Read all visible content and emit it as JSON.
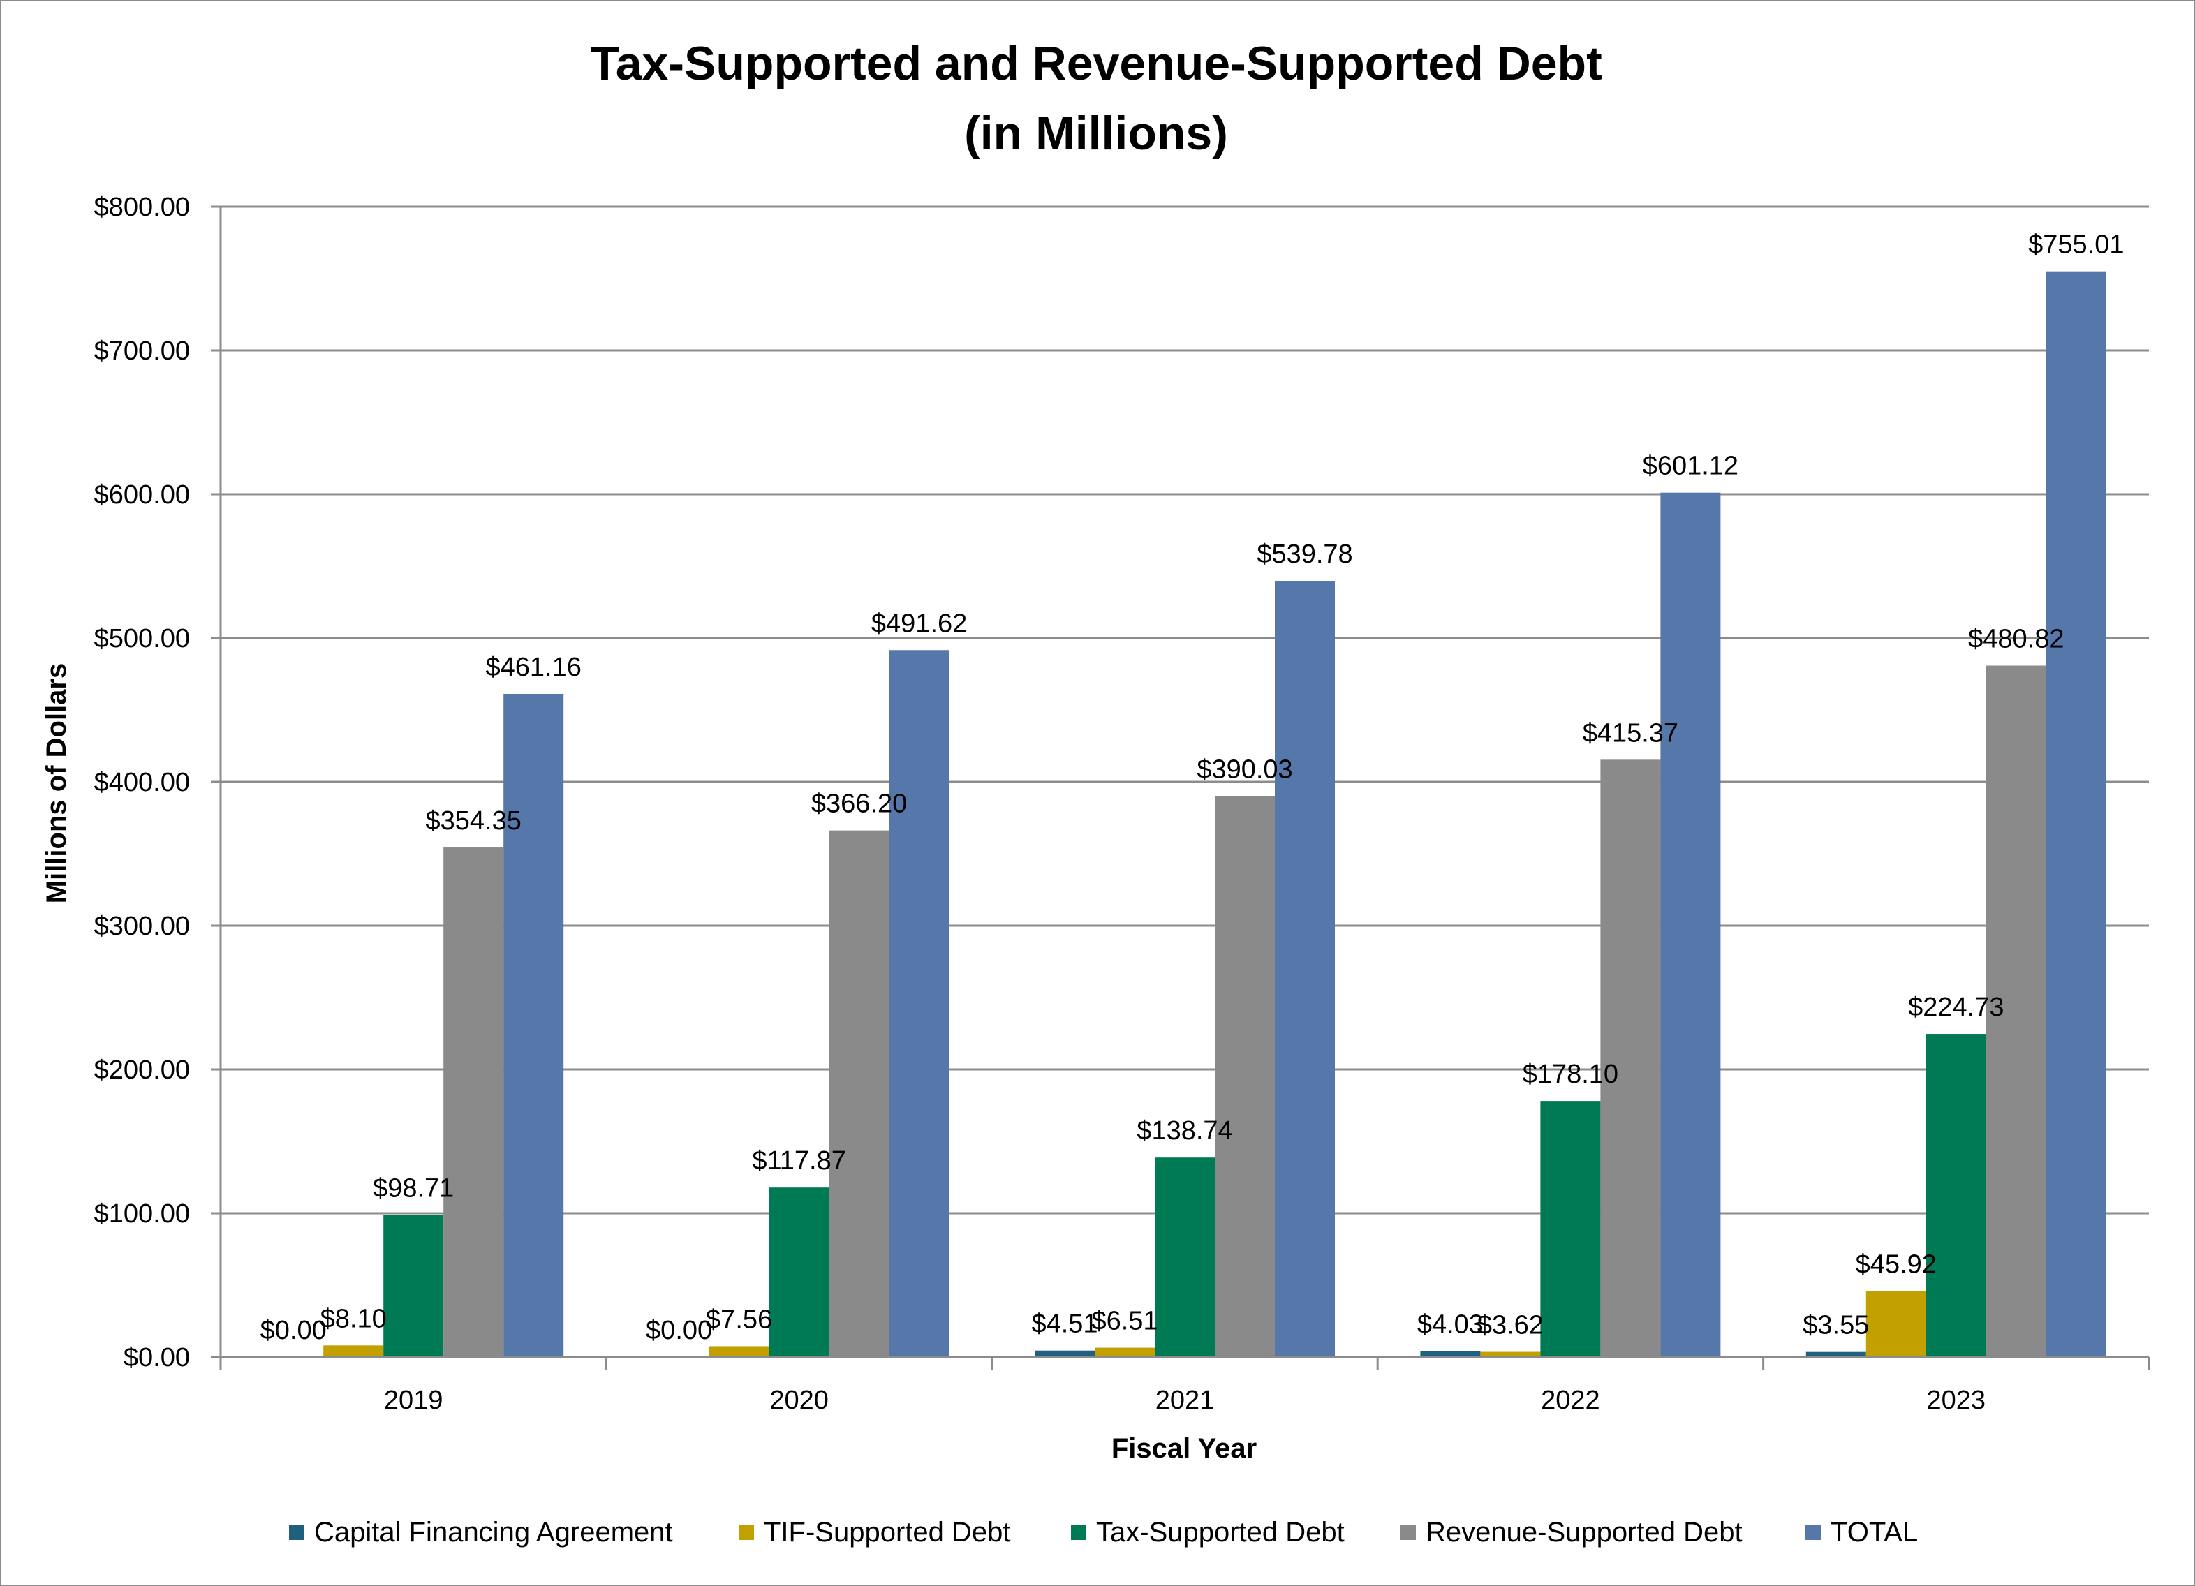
{
  "chart_data": {
    "type": "bar",
    "title": [
      "Tax-Supported and Revenue-Supported Debt",
      "(in Millions)"
    ],
    "xlabel": "Fiscal Year",
    "ylabel": "Millions of Dollars",
    "categories": [
      "2019",
      "2020",
      "2021",
      "2022",
      "2023"
    ],
    "ylim": [
      0,
      800
    ],
    "yticks": [
      0,
      100,
      200,
      300,
      400,
      500,
      600,
      700,
      800
    ],
    "ytick_labels": [
      "$0.00",
      "$100.00",
      "$200.00",
      "$300.00",
      "$400.00",
      "$500.00",
      "$600.00",
      "$700.00",
      "$800.00"
    ],
    "grid": true,
    "legend_position": "bottom",
    "series": [
      {
        "name": "Capital Financing Agreement",
        "color": "#1f5f7f",
        "values": [
          0.0,
          0.0,
          4.51,
          4.03,
          3.55
        ],
        "labels": [
          "$0.00",
          "$0.00",
          "$4.51",
          "$4.03",
          "$3.55"
        ]
      },
      {
        "name": "TIF-Supported Debt",
        "color": "#c2a000",
        "values": [
          8.1,
          7.56,
          6.51,
          3.62,
          45.92
        ],
        "labels": [
          "$8.10",
          "$7.56",
          "$6.51",
          "$3.62",
          "$45.92"
        ]
      },
      {
        "name": "Tax-Supported Debt",
        "color": "#007a55",
        "values": [
          98.71,
          117.87,
          138.74,
          178.1,
          224.73
        ],
        "labels": [
          "$98.71",
          "$117.87",
          "$138.74",
          "$178.10",
          "$224.73"
        ]
      },
      {
        "name": "Revenue-Supported Debt",
        "color": "#8a8a8a",
        "values": [
          354.35,
          366.2,
          390.03,
          415.37,
          480.82
        ],
        "labels": [
          "$354.35",
          "$366.20",
          "$390.03",
          "$415.37",
          "$480.82"
        ]
      },
      {
        "name": "TOTAL",
        "color": "#5677aa",
        "values": [
          461.16,
          491.62,
          539.78,
          601.12,
          755.01
        ],
        "labels": [
          "$461.16",
          "$491.62",
          "$539.78",
          "$601.12",
          "$755.01"
        ]
      }
    ]
  }
}
